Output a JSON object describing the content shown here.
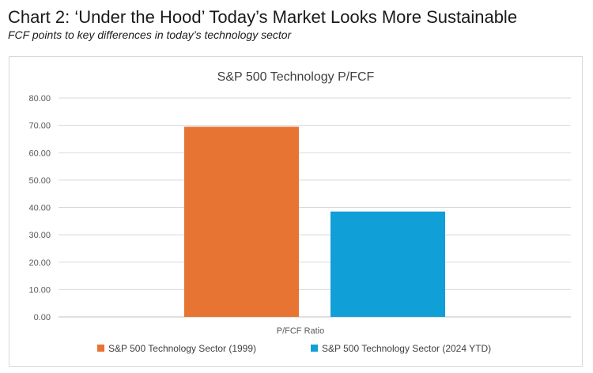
{
  "header": {
    "title": "Chart 2: ‘Under the Hood’ Today’s Market Looks More Sustainable",
    "subtitle": "FCF points to key differences in today’s technology sector"
  },
  "chart_data": {
    "type": "bar",
    "title": "S&P 500 Technology P/FCF",
    "categories": [
      "P/FCF Ratio"
    ],
    "xlabel": "",
    "ylabel": "",
    "ylim": [
      0,
      80
    ],
    "yticks": [
      "0.00",
      "10.00",
      "20.00",
      "30.00",
      "40.00",
      "50.00",
      "60.00",
      "70.00",
      "80.00"
    ],
    "grid": true,
    "legend_position": "bottom",
    "series": [
      {
        "name": "S&P 500 Technology Sector (1999)",
        "values": [
          69.5
        ],
        "color": "#E87433"
      },
      {
        "name": "S&P 500 Technology Sector (2024 YTD)",
        "values": [
          38.5
        ],
        "color": "#119FD7"
      }
    ]
  }
}
